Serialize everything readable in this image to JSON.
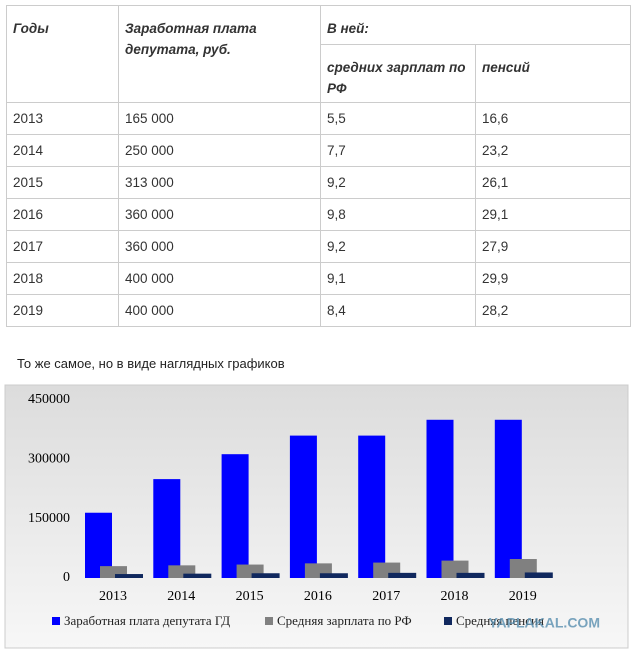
{
  "table": {
    "header": [
      "Годы",
      "Заработная плата депутата, руб.",
      "В ней:"
    ],
    "subheader": [
      "средних зарплат по РФ",
      "пенсий"
    ],
    "rows": [
      [
        "2013",
        "165 000",
        "5,5",
        "16,6"
      ],
      [
        "2014",
        "250 000",
        "7,7",
        "23,2"
      ],
      [
        "2015",
        "313 000",
        "9,2",
        "26,1"
      ],
      [
        "2016",
        "360 000",
        "9,8",
        "29,1"
      ],
      [
        "2017",
        "360 000",
        "9,2",
        "27,9"
      ],
      [
        "2018",
        "400 000",
        "9,1",
        "29,9"
      ],
      [
        "2019",
        "400 000",
        "8,4",
        "28,2"
      ]
    ]
  },
  "caption": "То же самое, но в виде наглядных графиков",
  "chart_data": {
    "type": "bar",
    "categories": [
      "2013",
      "2014",
      "2015",
      "2016",
      "2017",
      "2018",
      "2019"
    ],
    "series": [
      {
        "name": "Заработная плата депутата ГД",
        "color": "#0000ff",
        "values": [
          165000,
          250000,
          313000,
          360000,
          360000,
          400000,
          400000
        ]
      },
      {
        "name": "Средняя зарплата по РФ",
        "color": "#808080",
        "values": [
          30000,
          32000,
          34000,
          37000,
          39000,
          44000,
          48000
        ]
      },
      {
        "name": "Средняя пенсия",
        "color": "#10285e",
        "values": [
          10000,
          11000,
          12000,
          12000,
          13000,
          13000,
          14000
        ]
      }
    ],
    "ylim": [
      0,
      450000
    ],
    "yticks": [
      0,
      150000,
      300000,
      450000
    ]
  },
  "watermark": "YAPLAKAL.COM"
}
